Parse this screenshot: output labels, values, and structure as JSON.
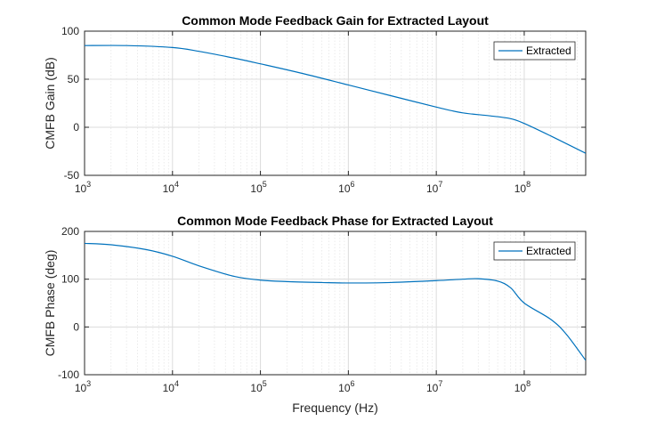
{
  "chart_data": [
    {
      "type": "line",
      "title": "Common Mode Feedback Gain for Extracted Layout",
      "xlabel": "",
      "ylabel": "CMFB Gain (dB)",
      "xscale": "log",
      "xlim": [
        1000,
        500000000
      ],
      "ylim": [
        -50,
        100
      ],
      "xticks": [
        1000,
        10000,
        100000,
        1000000,
        10000000,
        100000000
      ],
      "xtick_labels": [
        {
          "base": "10",
          "exp": "3"
        },
        {
          "base": "10",
          "exp": "4"
        },
        {
          "base": "10",
          "exp": "5"
        },
        {
          "base": "10",
          "exp": "6"
        },
        {
          "base": "10",
          "exp": "7"
        },
        {
          "base": "10",
          "exp": "8"
        }
      ],
      "yticks": [
        -50,
        0,
        50,
        100
      ],
      "ytick_labels": [
        "-50",
        "0",
        "50",
        "100"
      ],
      "grid": true,
      "legend": "top-right",
      "series": [
        {
          "name": "Extracted",
          "color": "#0072BD",
          "x": [
            1000,
            3000,
            10000,
            20000,
            50000,
            100000,
            300000,
            1000000,
            3000000,
            10000000,
            20000000,
            40000000,
            70000000,
            100000000,
            200000000,
            500000000
          ],
          "y": [
            85,
            85,
            83,
            79,
            72,
            66,
            56,
            44,
            33,
            21,
            15,
            12,
            9,
            4,
            -9,
            -27
          ]
        }
      ]
    },
    {
      "type": "line",
      "title": "Common Mode Feedback Phase for Extracted Layout",
      "xlabel": "Frequency (Hz)",
      "ylabel": "CMFB Phase (deg)",
      "xscale": "log",
      "xlim": [
        1000,
        500000000
      ],
      "ylim": [
        -100,
        200
      ],
      "xticks": [
        1000,
        10000,
        100000,
        1000000,
        10000000,
        100000000
      ],
      "xtick_labels": [
        {
          "base": "10",
          "exp": "3"
        },
        {
          "base": "10",
          "exp": "4"
        },
        {
          "base": "10",
          "exp": "5"
        },
        {
          "base": "10",
          "exp": "6"
        },
        {
          "base": "10",
          "exp": "7"
        },
        {
          "base": "10",
          "exp": "8"
        }
      ],
      "yticks": [
        -100,
        0,
        100,
        200
      ],
      "ytick_labels": [
        "-100",
        "0",
        "100",
        "200"
      ],
      "grid": true,
      "legend": "top-right",
      "series": [
        {
          "name": "Extracted",
          "color": "#0072BD",
          "x": [
            1000,
            2000,
            5000,
            10000,
            20000,
            50000,
            100000,
            200000,
            500000,
            1000000,
            3000000,
            10000000,
            20000000,
            30000000,
            50000000,
            70000000,
            100000000,
            200000000,
            300000000,
            500000000
          ],
          "y": [
            175,
            172,
            162,
            148,
            128,
            106,
            98,
            95,
            93,
            92,
            93,
            97,
            100,
            101,
            96,
            82,
            50,
            16,
            -15,
            -70
          ]
        }
      ]
    }
  ]
}
